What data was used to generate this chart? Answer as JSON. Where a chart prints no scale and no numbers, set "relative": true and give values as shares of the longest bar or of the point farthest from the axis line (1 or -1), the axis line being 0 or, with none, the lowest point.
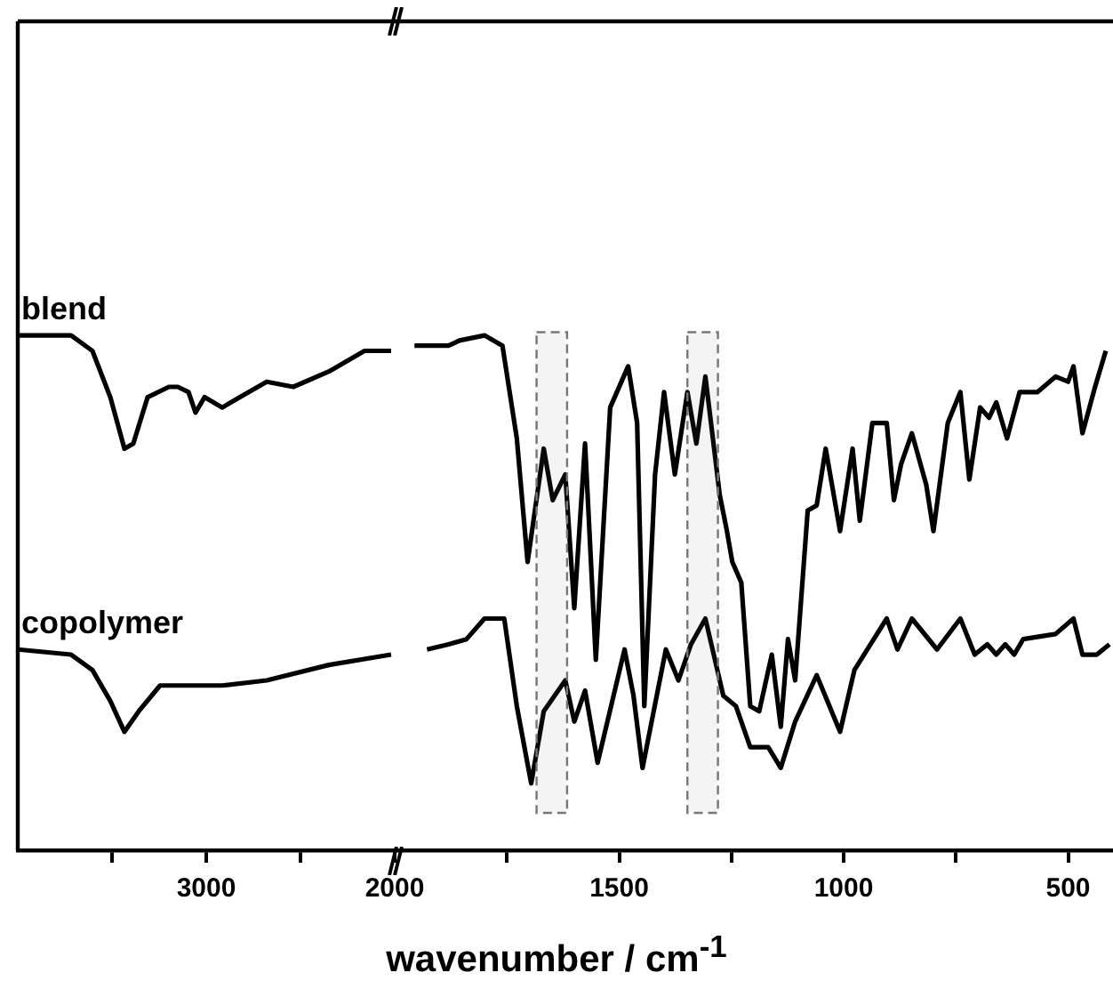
{
  "chart_data": [
    {
      "type": "line",
      "xlabel": "wavenumber / cm$^{-1}$",
      "relative": true,
      "grid": false,
      "legend": false,
      "marker": "none",
      "line_style": "solid",
      "tick_labels": "x",
      "xlim": [
        4000,
        2000
      ],
      "xticks": [
        {
          "value": 3500,
          "label": null
        },
        3000,
        {
          "value": 2500,
          "label": null
        },
        2000
      ],
      "series": [
        {
          "name": "blend",
          "color": "#000000",
          "x": [
            4000,
            3717,
            3604,
            3509,
            3434,
            3387,
            3311,
            3198,
            3151,
            3094,
            3057,
            3009,
            2915,
            2821,
            2679,
            2538,
            2349,
            2160,
            2019
          ],
          "values": [
            1.0,
            1.0,
            0.97,
            0.88,
            0.78,
            0.79,
            0.88,
            0.9,
            0.9,
            0.89,
            0.85,
            0.88,
            0.86,
            0.88,
            0.91,
            0.9,
            0.93,
            0.97,
            0.97
          ]
        },
        {
          "name": "copolymer",
          "color": "#000000",
          "x": [
            4000,
            3717,
            3604,
            3509,
            3434,
            3358,
            3245,
            3075,
            2915,
            2679,
            2349,
            2019
          ],
          "values": [
            0.39,
            0.38,
            0.35,
            0.29,
            0.23,
            0.27,
            0.32,
            0.32,
            0.32,
            0.33,
            0.36,
            0.38
          ]
        }
      ]
    },
    {
      "type": "line",
      "relative": true,
      "grid": false,
      "legend": false,
      "marker": "none",
      "line_style": "solid",
      "tick_labels": "x",
      "xlim": [
        2000,
        400
      ],
      "xticks": [
        {
          "value": 1750,
          "label": null
        },
        1500,
        {
          "value": 1250,
          "label": null
        },
        1000,
        {
          "value": 750,
          "label": null
        },
        500
      ],
      "bands": [
        {
          "axis": "x",
          "from": 1684,
          "to": 1616,
          "color": "#777777"
        },
        {
          "axis": "x",
          "from": 1348,
          "to": 1280,
          "color": "#777777"
        }
      ],
      "series": [
        {
          "color": "#000000",
          "x": [
            1956,
            1880,
            1856,
            1800,
            1760,
            1728,
            1704,
            1668,
            1648,
            1620,
            1600,
            1576,
            1552,
            1520,
            1480,
            1460,
            1444,
            1420,
            1400,
            1376,
            1348,
            1328,
            1308,
            1276,
            1260,
            1248,
            1228,
            1208,
            1188,
            1160,
            1140,
            1124,
            1108,
            1080,
            1060,
            1040,
            1008,
            980,
            964,
            936,
            904,
            888,
            872,
            848,
            816,
            800,
            768,
            740,
            720,
            696,
            676,
            660,
            636,
            608,
            568,
            528,
            500,
            488,
            468,
            440,
            416
          ],
          "values": [
            0.98,
            0.98,
            0.99,
            1.0,
            0.98,
            0.8,
            0.56,
            0.78,
            0.68,
            0.73,
            0.47,
            0.79,
            0.37,
            0.86,
            0.94,
            0.83,
            0.28,
            0.73,
            0.89,
            0.73,
            0.89,
            0.79,
            0.92,
            0.69,
            0.62,
            0.56,
            0.52,
            0.28,
            0.27,
            0.38,
            0.24,
            0.41,
            0.33,
            0.66,
            0.67,
            0.78,
            0.62,
            0.78,
            0.64,
            0.83,
            0.83,
            0.68,
            0.75,
            0.81,
            0.71,
            0.62,
            0.83,
            0.89,
            0.72,
            0.86,
            0.84,
            0.87,
            0.8,
            0.89,
            0.89,
            0.92,
            0.91,
            0.94,
            0.81,
            0.9,
            0.97
          ]
        },
        {
          "color": "#000000",
          "x": [
            1928,
            1880,
            1840,
            1800,
            1756,
            1728,
            1696,
            1668,
            1620,
            1600,
            1576,
            1548,
            1488,
            1468,
            1448,
            1396,
            1368,
            1340,
            1308,
            1268,
            1240,
            1208,
            1168,
            1140,
            1108,
            1060,
            1008,
            976,
            940,
            904,
            880,
            848,
            792,
            740,
            708,
            680,
            660,
            640,
            620,
            600,
            528,
            488,
            468,
            436,
            408
          ],
          "values": [
            0.39,
            0.4,
            0.41,
            0.45,
            0.45,
            0.28,
            0.13,
            0.27,
            0.33,
            0.25,
            0.31,
            0.17,
            0.39,
            0.3,
            0.16,
            0.39,
            0.33,
            0.4,
            0.45,
            0.3,
            0.28,
            0.2,
            0.2,
            0.16,
            0.25,
            0.34,
            0.23,
            0.35,
            0.4,
            0.45,
            0.39,
            0.45,
            0.39,
            0.45,
            0.38,
            0.4,
            0.38,
            0.4,
            0.38,
            0.41,
            0.42,
            0.45,
            0.38,
            0.38,
            0.4
          ]
        }
      ]
    }
  ]
}
